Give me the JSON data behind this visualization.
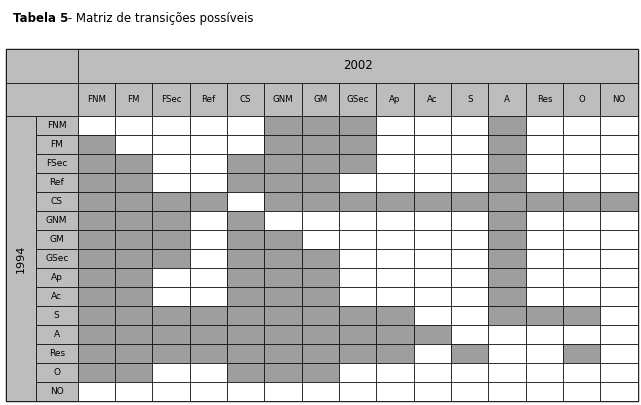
{
  "title": "Tabela 5",
  "subtitle": " - Matriz de transições possíveis",
  "year_label": "2002",
  "year1_label": "1994",
  "col_labels": [
    "FNM",
    "FM",
    "FSec",
    "Ref",
    "CS",
    "GNM",
    "GM",
    "GSec",
    "Ap",
    "Ac",
    "S",
    "A",
    "Res",
    "O",
    "NO"
  ],
  "row_labels": [
    "FNM",
    "FM",
    "FSec",
    "Ref",
    "CS",
    "GNM",
    "GM",
    "GSec",
    "Ap",
    "Ac",
    "S",
    "A",
    "Res",
    "O",
    "NO"
  ],
  "gray_color": "#9E9E9E",
  "white_color": "#FFFFFF",
  "header_bg": "#BDBDBD",
  "border_color": "#000000",
  "matrix": [
    [
      0,
      0,
      0,
      0,
      0,
      1,
      1,
      1,
      0,
      0,
      0,
      1,
      0,
      0,
      0
    ],
    [
      1,
      0,
      0,
      0,
      0,
      1,
      1,
      1,
      0,
      0,
      0,
      1,
      0,
      0,
      0
    ],
    [
      1,
      1,
      0,
      0,
      1,
      1,
      1,
      1,
      0,
      0,
      0,
      1,
      0,
      0,
      0
    ],
    [
      1,
      1,
      0,
      0,
      1,
      1,
      1,
      0,
      0,
      0,
      0,
      1,
      0,
      0,
      0
    ],
    [
      1,
      1,
      1,
      1,
      0,
      1,
      1,
      1,
      1,
      1,
      1,
      1,
      1,
      1,
      1
    ],
    [
      1,
      1,
      1,
      0,
      1,
      0,
      0,
      0,
      0,
      0,
      0,
      1,
      0,
      0,
      0
    ],
    [
      1,
      1,
      1,
      0,
      1,
      1,
      0,
      0,
      0,
      0,
      0,
      1,
      0,
      0,
      0
    ],
    [
      1,
      1,
      1,
      0,
      1,
      1,
      1,
      0,
      0,
      0,
      0,
      1,
      0,
      0,
      0
    ],
    [
      1,
      1,
      0,
      0,
      1,
      1,
      1,
      0,
      0,
      0,
      0,
      1,
      0,
      0,
      0
    ],
    [
      1,
      1,
      0,
      0,
      1,
      1,
      1,
      0,
      0,
      0,
      0,
      1,
      0,
      0,
      0
    ],
    [
      1,
      1,
      1,
      1,
      1,
      1,
      1,
      1,
      1,
      0,
      0,
      1,
      1,
      1,
      0
    ],
    [
      1,
      1,
      1,
      1,
      1,
      1,
      1,
      1,
      1,
      1,
      0,
      0,
      0,
      0,
      0
    ],
    [
      1,
      1,
      1,
      1,
      1,
      1,
      1,
      1,
      1,
      0,
      1,
      0,
      0,
      1,
      0
    ],
    [
      1,
      1,
      0,
      0,
      1,
      1,
      1,
      0,
      0,
      0,
      0,
      0,
      0,
      0,
      0
    ],
    [
      0,
      0,
      0,
      0,
      0,
      0,
      0,
      0,
      0,
      0,
      0,
      0,
      0,
      0,
      0
    ]
  ],
  "figsize": [
    6.41,
    4.05
  ],
  "dpi": 100
}
